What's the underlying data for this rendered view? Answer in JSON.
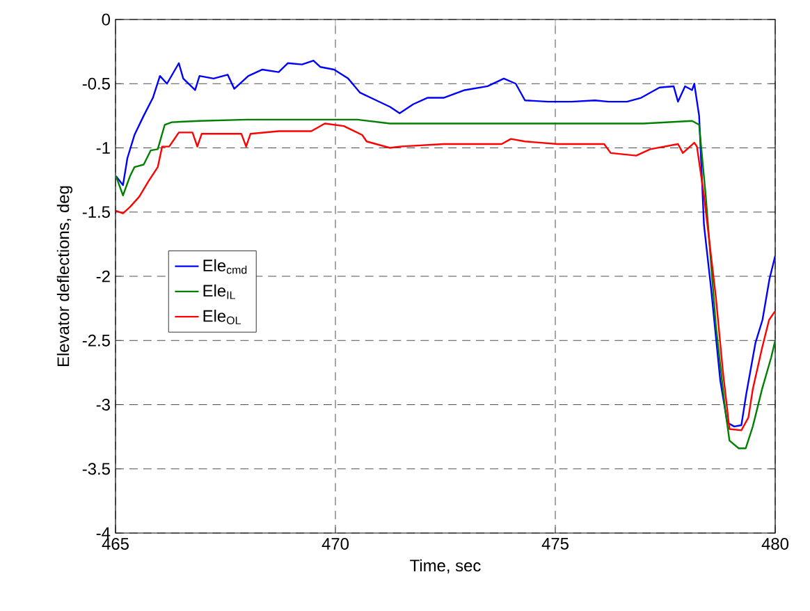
{
  "chart_data": {
    "type": "line",
    "xlabel": "Time, sec",
    "ylabel": "Elevator deflections, deg",
    "xlim": [
      465,
      480
    ],
    "ylim": [
      -4,
      0
    ],
    "xticks": [
      465,
      470,
      475,
      480
    ],
    "yticks": [
      -4,
      -3.5,
      -3,
      -2.5,
      -2,
      -1.5,
      -1,
      -0.5,
      0
    ],
    "grid": true,
    "legend": "left",
    "series": [
      {
        "name": "Ele$_{cmd}$",
        "color": "#0000ff",
        "x": [
          465.01,
          465.17,
          465.27,
          465.43,
          465.64,
          465.85,
          466.01,
          466.17,
          466.44,
          466.54,
          466.81,
          466.91,
          467.23,
          467.55,
          467.7,
          468.02,
          468.34,
          468.71,
          468.92,
          469.24,
          469.5,
          469.66,
          469.97,
          470.29,
          470.56,
          470.93,
          471.24,
          471.46,
          471.77,
          472.09,
          472.46,
          472.94,
          473.46,
          473.83,
          474.1,
          474.31,
          474.84,
          475.37,
          475.9,
          476.21,
          476.63,
          476.95,
          477.16,
          477.37,
          477.69,
          477.79,
          477.95,
          478.11,
          478.16,
          478.27,
          478.38,
          478.54,
          478.75,
          478.91,
          479.07,
          479.23,
          479.34,
          479.55,
          479.71,
          479.87,
          480.0
        ],
        "values": [
          -1.22,
          -1.29,
          -1.08,
          -0.9,
          -0.75,
          -0.61,
          -0.44,
          -0.5,
          -0.34,
          -0.46,
          -0.55,
          -0.44,
          -0.46,
          -0.43,
          -0.54,
          -0.44,
          -0.39,
          -0.41,
          -0.34,
          -0.35,
          -0.32,
          -0.37,
          -0.39,
          -0.46,
          -0.57,
          -0.63,
          -0.68,
          -0.73,
          -0.66,
          -0.61,
          -0.61,
          -0.55,
          -0.52,
          -0.46,
          -0.5,
          -0.63,
          -0.64,
          -0.64,
          -0.63,
          -0.64,
          -0.64,
          -0.61,
          -0.57,
          -0.53,
          -0.52,
          -0.64,
          -0.52,
          -0.55,
          -0.5,
          -0.75,
          -1.6,
          -2.09,
          -2.81,
          -3.14,
          -3.17,
          -3.16,
          -2.92,
          -2.52,
          -2.34,
          -2.02,
          -1.84
        ]
      },
      {
        "name": "Ele$_{IL}$",
        "color": "#008000",
        "x": [
          465.01,
          465.17,
          465.33,
          465.43,
          465.64,
          465.8,
          465.96,
          466.12,
          466.28,
          466.91,
          468.0,
          469.5,
          470.5,
          471.24,
          472.5,
          474.0,
          475.5,
          477.0,
          478.11,
          478.27,
          478.42,
          478.65,
          478.86,
          478.96,
          479.17,
          479.33,
          479.49,
          479.7,
          479.91,
          480.0
        ],
        "values": [
          -1.22,
          -1.37,
          -1.22,
          -1.15,
          -1.13,
          -1.02,
          -1.01,
          -0.82,
          -0.8,
          -0.79,
          -0.78,
          -0.78,
          -0.78,
          -0.81,
          -0.81,
          -0.81,
          -0.81,
          -0.81,
          -0.79,
          -0.82,
          -1.37,
          -2.38,
          -3.03,
          -3.28,
          -3.34,
          -3.34,
          -3.17,
          -2.88,
          -2.63,
          -2.5
        ]
      },
      {
        "name": "Ele$_{OL}$",
        "color": "#ff0000",
        "x": [
          465.01,
          465.17,
          465.33,
          465.54,
          465.75,
          465.96,
          466.06,
          466.22,
          466.44,
          466.75,
          466.86,
          466.96,
          467.86,
          467.97,
          468.07,
          468.71,
          469.45,
          469.76,
          470.19,
          470.61,
          470.71,
          471.24,
          471.46,
          472.46,
          473.78,
          473.99,
          474.31,
          475.05,
          476.11,
          476.26,
          476.84,
          477.16,
          477.79,
          477.9,
          478.16,
          478.22,
          478.38,
          478.65,
          478.81,
          478.96,
          479.23,
          479.39,
          479.49,
          479.7,
          479.86,
          480.0
        ],
        "values": [
          -1.49,
          -1.51,
          -1.46,
          -1.38,
          -1.26,
          -1.15,
          -0.99,
          -0.99,
          -0.88,
          -0.88,
          -0.99,
          -0.89,
          -0.89,
          -0.99,
          -0.89,
          -0.87,
          -0.87,
          -0.81,
          -0.83,
          -0.9,
          -0.95,
          -1.0,
          -0.99,
          -0.97,
          -0.97,
          -0.93,
          -0.95,
          -0.97,
          -0.97,
          -1.04,
          -1.06,
          -1.01,
          -0.97,
          -1.04,
          -0.96,
          -0.99,
          -1.37,
          -2.16,
          -2.74,
          -3.19,
          -3.2,
          -3.1,
          -2.88,
          -2.56,
          -2.34,
          -2.27
        ]
      }
    ]
  }
}
